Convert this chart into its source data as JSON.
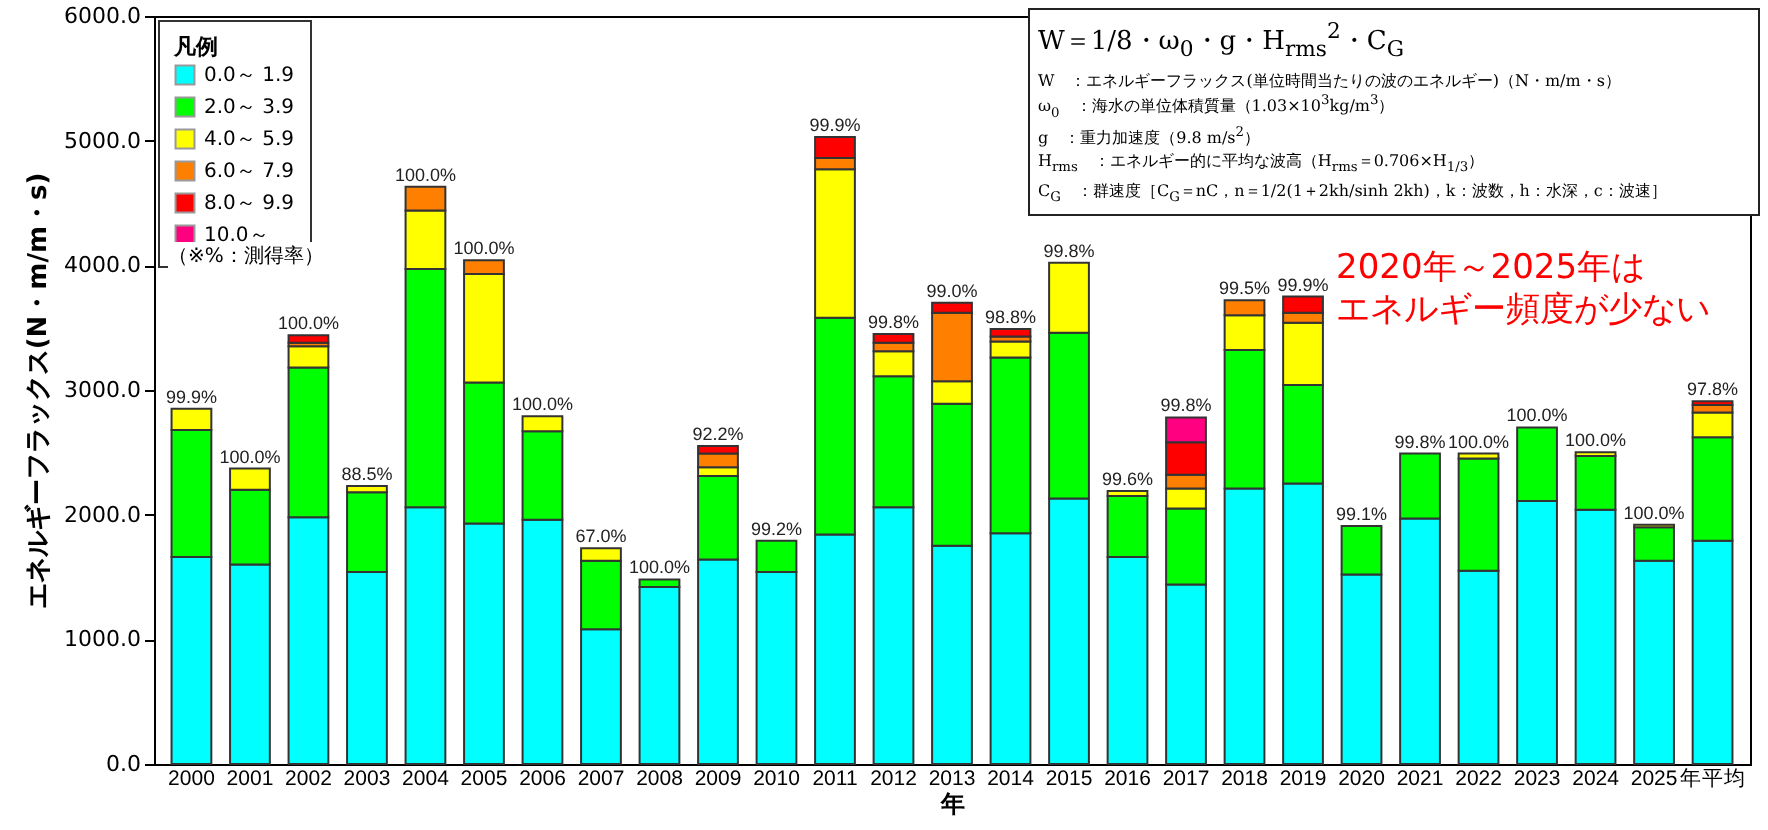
{
  "chart_data": {
    "type": "bar",
    "stacked": true,
    "xlabel": "年",
    "ylabel": "エネルギーフラックス(N・m/m・s)",
    "legend_title": "凡例",
    "legend": "top left",
    "categories": [
      "2000",
      "2001",
      "2002",
      "2003",
      "2004",
      "2005",
      "2006",
      "2007",
      "2008",
      "2009",
      "2010",
      "2011",
      "2012",
      "2013",
      "2014",
      "2015",
      "2016",
      "2017",
      "2018",
      "2019",
      "2020",
      "2021",
      "2022",
      "2023",
      "2024",
      "2025",
      "年平均"
    ],
    "ylim": [
      0,
      6000
    ],
    "yticks": [
      {
        "value": 0,
        "label": "0.0"
      },
      {
        "value": 1000,
        "label": "1000.0"
      },
      {
        "value": 2000,
        "label": "2000.0"
      },
      {
        "value": 3000,
        "label": "3000.0"
      },
      {
        "value": 4000,
        "label": "4000.0"
      },
      {
        "value": 5000,
        "label": "5000.0"
      },
      {
        "value": 6000,
        "label": "6000.0"
      }
    ],
    "series": [
      {
        "name": "0.0～ 1.9",
        "color": "#00ffff",
        "values": [
          1660,
          1600,
          1980,
          1540,
          2060,
          1930,
          1960,
          1080,
          1420,
          1640,
          1540,
          1840,
          2060,
          1750,
          1850,
          2130,
          1660,
          1440,
          2210,
          2250,
          1520,
          1970,
          1550,
          2110,
          2040,
          1630,
          1790
        ]
      },
      {
        "name": "2.0～ 3.9",
        "color": "#00ff00",
        "values": [
          1020,
          600,
          1200,
          640,
          1910,
          1130,
          710,
          550,
          60,
          670,
          250,
          1740,
          1050,
          1140,
          1410,
          1330,
          490,
          610,
          1110,
          790,
          390,
          520,
          900,
          590,
          430,
          270,
          830
        ]
      },
      {
        "name": "4.0～ 5.9",
        "color": "#ffff00",
        "values": [
          170,
          170,
          170,
          50,
          470,
          870,
          120,
          100,
          null,
          70,
          null,
          1190,
          200,
          180,
          130,
          560,
          40,
          160,
          280,
          500,
          null,
          null,
          40,
          null,
          30,
          20,
          200
        ]
      },
      {
        "name": "6.0～ 7.9",
        "color": "#ff8000",
        "values": [
          null,
          null,
          30,
          null,
          190,
          110,
          null,
          null,
          null,
          110,
          null,
          90,
          70,
          550,
          40,
          null,
          null,
          110,
          120,
          80,
          null,
          null,
          null,
          null,
          null,
          null,
          60
        ]
      },
      {
        "name": "8.0～ 9.9",
        "color": "#ff0000",
        "values": [
          null,
          null,
          60,
          null,
          null,
          null,
          null,
          null,
          null,
          60,
          null,
          170,
          70,
          80,
          60,
          null,
          null,
          260,
          null,
          130,
          null,
          null,
          null,
          null,
          null,
          null,
          30
        ]
      },
      {
        "name": "10.0～",
        "color": "#ff0080",
        "values": [
          null,
          null,
          null,
          null,
          null,
          null,
          null,
          null,
          null,
          null,
          null,
          null,
          null,
          null,
          null,
          null,
          null,
          200,
          null,
          null,
          null,
          null,
          null,
          null,
          null,
          null,
          null
        ]
      }
    ],
    "annotations": [
      "（※%：測得率）",
      "W＝1/8・ω$_{0}$・g・H$_{rms}$$^{2}$・C$_{G}$",
      "W　：エネルギーフラックス(単位時間当たりの波のエネルギー)（N・m/m・s）",
      "ω$_{0}$　：海水の単位体積質量（1.03×10$^{3}$kg/m$^{3}$）",
      "g　：重力加速度（9.8 m/s$^{2}$）",
      "H$_{rms}$　：エネルギー的に平均な波高（H$_{rms}$＝0.706×H$_{1/3}$）",
      "C$_{G}$　：群速度［C$_{G}$＝nC，n＝1/2(1＋2kh/sinh 2kh)，k：波数，h：水深，c：波速］",
      "2020年～2025年は",
      "エネルギー頻度が少ない",
      {
        "text": "99.9%",
        "x": "2000",
        "y": 2850
      },
      {
        "text": "100.0%",
        "x": "2001",
        "y": 2370
      },
      {
        "text": "100.0%",
        "x": "2002",
        "y": 3440
      },
      {
        "text": "88.5%",
        "x": "2003",
        "y": 2230
      },
      {
        "text": "100.0%",
        "x": "2004",
        "y": 4630
      },
      {
        "text": "100.0%",
        "x": "2005",
        "y": 4040
      },
      {
        "text": "100.0%",
        "x": "2006",
        "y": 2790
      },
      {
        "text": "67.0%",
        "x": "2007",
        "y": 1730
      },
      {
        "text": "100.0%",
        "x": "2008",
        "y": 1480
      },
      {
        "text": "92.2%",
        "x": "2009",
        "y": 2550
      },
      {
        "text": "99.2%",
        "x": "2010",
        "y": 1790
      },
      {
        "text": "99.9%",
        "x": "2011",
        "y": 5030
      },
      {
        "text": "99.8%",
        "x": "2012",
        "y": 3450
      },
      {
        "text": "99.0%",
        "x": "2013",
        "y": 3700
      },
      {
        "text": "98.8%",
        "x": "2014",
        "y": 3490
      },
      {
        "text": "99.8%",
        "x": "2015",
        "y": 4020
      },
      {
        "text": "99.6%",
        "x": "2016",
        "y": 2190
      },
      {
        "text": "99.8%",
        "x": "2017",
        "y": 2780
      },
      {
        "text": "99.5%",
        "x": "2018",
        "y": 3720
      },
      {
        "text": "99.9%",
        "x": "2019",
        "y": 3750
      },
      {
        "text": "99.1%",
        "x": "2020",
        "y": 1910
      },
      {
        "text": "99.8%",
        "x": "2021",
        "y": 2490
      },
      {
        "text": "100.0%",
        "x": "2022",
        "y": 2490
      },
      {
        "text": "100.0%",
        "x": "2023",
        "y": 2700
      },
      {
        "text": "100.0%",
        "x": "2024",
        "y": 2500
      },
      {
        "text": "100.0%",
        "x": "2025",
        "y": 1920
      },
      {
        "text": "97.8%",
        "x": "年平均",
        "y": 2910
      }
    ]
  }
}
